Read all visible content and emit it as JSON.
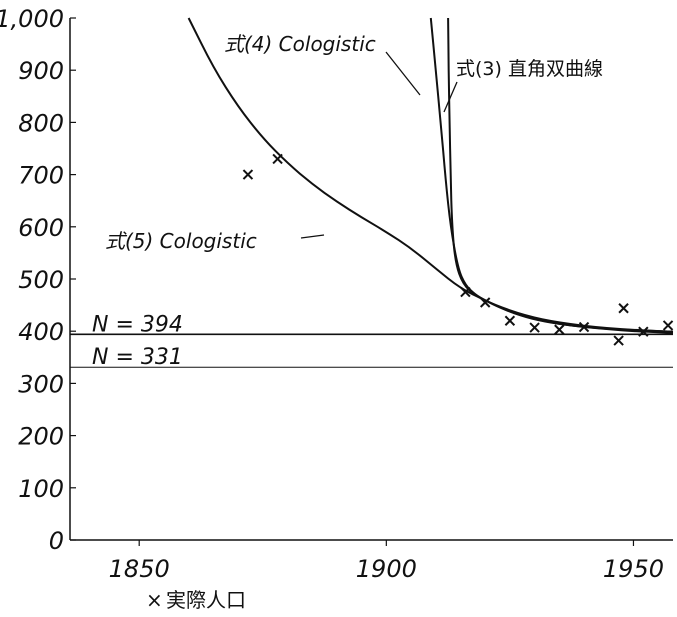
{
  "chart_data": {
    "type": "line",
    "x_ticks": [
      "1850",
      "1900",
      "1950"
    ],
    "y_ticks": [
      "0",
      "100",
      "200",
      "300",
      "400",
      "500",
      "600",
      "700",
      "800",
      "900",
      "1,000"
    ],
    "xlim": [
      1836,
      1958
    ],
    "ylim": [
      0,
      1000
    ],
    "grid": false,
    "series": [
      {
        "name": "式(5) Cologistic",
        "points": [
          [
            1860,
            1000
          ],
          [
            1865,
            905
          ],
          [
            1870,
            830
          ],
          [
            1875,
            770
          ],
          [
            1880,
            722
          ],
          [
            1885,
            682
          ],
          [
            1890,
            648
          ],
          [
            1895,
            618
          ],
          [
            1900,
            590
          ],
          [
            1905,
            559
          ],
          [
            1910,
            520
          ],
          [
            1915,
            482
          ],
          [
            1920,
            459
          ],
          [
            1925,
            437
          ],
          [
            1930,
            423
          ],
          [
            1935,
            414
          ],
          [
            1940,
            408
          ],
          [
            1945,
            404
          ],
          [
            1950,
            400
          ],
          [
            1958,
            397
          ]
        ]
      },
      {
        "name": "式(4) Cologistic",
        "points": [
          [
            1909,
            1000
          ],
          [
            1910,
            900
          ],
          [
            1911,
            800
          ],
          [
            1912,
            690
          ],
          [
            1913,
            600
          ],
          [
            1914.5,
            520
          ],
          [
            1916,
            488
          ],
          [
            1918,
            470
          ],
          [
            1920,
            459
          ],
          [
            1923,
            445
          ],
          [
            1927,
            430
          ],
          [
            1932,
            418
          ],
          [
            1938,
            410
          ],
          [
            1945,
            404
          ],
          [
            1958,
            399
          ]
        ]
      },
      {
        "name": "式(3) 直角双曲線",
        "points": [
          [
            1912.5,
            1000
          ],
          [
            1912.6,
            900
          ],
          [
            1912.8,
            800
          ],
          [
            1913,
            700
          ],
          [
            1913.3,
            600
          ],
          [
            1914,
            530
          ],
          [
            1915.5,
            490
          ],
          [
            1918,
            468
          ],
          [
            1922,
            450
          ],
          [
            1928,
            430
          ],
          [
            1935,
            416
          ],
          [
            1945,
            405
          ],
          [
            1958,
            399
          ]
        ]
      }
    ],
    "observed": {
      "name": "実際人口",
      "points": [
        [
          1872,
          700
        ],
        [
          1878,
          730
        ],
        [
          1916,
          475
        ],
        [
          1920,
          455
        ],
        [
          1925,
          420
        ],
        [
          1930,
          407
        ],
        [
          1935,
          403
        ],
        [
          1940,
          408
        ],
        [
          1947,
          382
        ],
        [
          1948,
          444
        ],
        [
          1952,
          399
        ],
        [
          1957,
          411
        ]
      ]
    },
    "reference_lines": [
      {
        "value": 394,
        "label": "N = 394"
      },
      {
        "value": 331,
        "label": "N = 331"
      }
    ],
    "annotations": {
      "eq5": "式(5) Cologistic",
      "eq4": "式(4) Cologistic",
      "eq3": "式(3) 直角双曲線"
    },
    "legend": {
      "marker": "×",
      "label": "実際人口"
    }
  }
}
